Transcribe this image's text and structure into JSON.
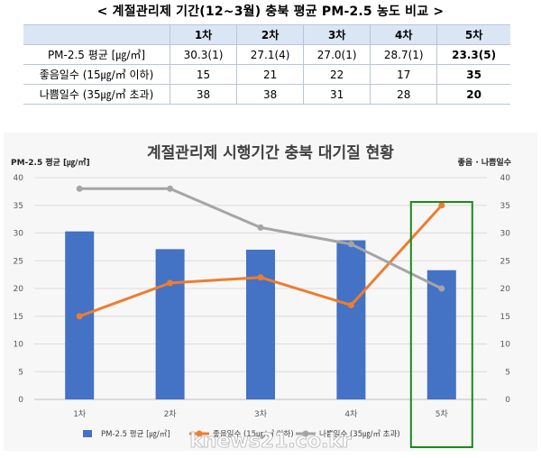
{
  "heading": "< 계절관리제 기간(12~3월) 충북 평균 PM-2.5 농도 비교 >",
  "table": {
    "corner": "",
    "columns": [
      "1차",
      "2차",
      "3차",
      "4차",
      "5차"
    ],
    "rows": [
      {
        "label": "PM-2.5 평균 [㎍/㎥]",
        "cells": [
          "30.3(1)",
          "27.1(4)",
          "27.0(1)",
          "28.7(1)",
          "23.3(5)"
        ]
      },
      {
        "label": "좋음일수 (15㎍/㎥ 이하)",
        "cells": [
          "15",
          "21",
          "22",
          "17",
          "35"
        ]
      },
      {
        "label": "나쁨일수 (35㎍/㎥ 초과)",
        "cells": [
          "38",
          "38",
          "31",
          "28",
          "20"
        ]
      }
    ]
  },
  "chart_data": {
    "type": "bar",
    "title": "계절관리제 시행기간 충북 대기질 현황",
    "ylabel_left": "PM-2.5 평균 [㎍/㎥]",
    "ylabel_right": "좋음 · 나쁨일수",
    "categories": [
      "1차",
      "2차",
      "3차",
      "4차",
      "5차"
    ],
    "ylim": [
      0,
      40
    ],
    "yticks": [
      "0",
      "5",
      "10",
      "15",
      "20",
      "25",
      "30",
      "35",
      "40"
    ],
    "series": [
      {
        "name": "PM-2.5 평균 [㎍/㎥]",
        "kind": "bar",
        "color": "#4472c4",
        "values": [
          30.3,
          27.1,
          27.0,
          28.7,
          23.3
        ]
      },
      {
        "name": "좋음일수 (15㎍/㎥ 이하)",
        "kind": "line",
        "color": "#ed7d31",
        "values": [
          15,
          21,
          22,
          17,
          35
        ]
      },
      {
        "name": "나쁨일수 (35㎍/㎥ 초과)",
        "kind": "line",
        "color": "#a5a5a5",
        "values": [
          38,
          38,
          31,
          28,
          20
        ]
      }
    ],
    "highlight_category": "5차",
    "highlight_color": "#1a8a1a"
  },
  "watermark": "knews21.co.kr"
}
